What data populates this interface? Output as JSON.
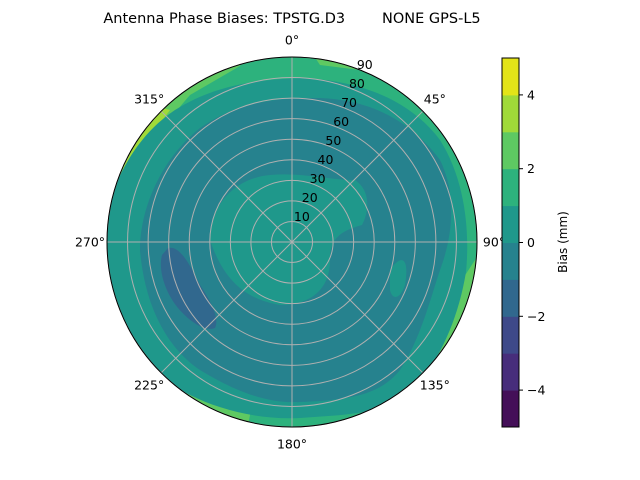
{
  "chart_data": {
    "type": "contour",
    "projection": "polar",
    "title": "Antenna Phase Biases: TPSTG.D3        NONE GPS-L5",
    "theta_direction": "clockwise",
    "theta_zero": "top",
    "theta_ticks": [
      "0°",
      "45°",
      "90°",
      "135°",
      "180°",
      "225°",
      "270°",
      "315°"
    ],
    "theta_tick_values": [
      0,
      45,
      90,
      135,
      180,
      225,
      270,
      315
    ],
    "r_ticks": [
      "10",
      "20",
      "30",
      "40",
      "50",
      "60",
      "70",
      "80",
      "90"
    ],
    "r_tick_values": [
      10,
      20,
      30,
      40,
      50,
      60,
      70,
      80,
      90
    ],
    "rlim": [
      0,
      90
    ],
    "grid": true,
    "colorbar": {
      "label": "Bias (mm)",
      "levels": [
        -5,
        -4,
        -3,
        -2,
        -1,
        0,
        1,
        2,
        3,
        4,
        5
      ],
      "ticks": [
        -4,
        -2,
        0,
        2,
        4
      ],
      "tick_labels": [
        "−4",
        "−2",
        "0",
        "2",
        "4"
      ],
      "colors": [
        "#440f58",
        "#472d7b",
        "#3e4989",
        "#31688e",
        "#26828e",
        "#1f988b",
        "#2db27d",
        "#5ec962",
        "#a0da39",
        "#e3e418"
      ],
      "colormap": "viridis"
    },
    "regions": [
      {
        "level_range": [
          0,
          1
        ],
        "location": "center and mid ring, southeast and north"
      },
      {
        "level_range": [
          -1,
          0
        ],
        "location": "broad ring between ~20 and ~70 zenith"
      },
      {
        "level_range": [
          -2,
          -1
        ],
        "location": "west-southwest near 60-75 zenith"
      },
      {
        "level_range": [
          1,
          2
        ],
        "location": "outer edge"
      },
      {
        "level_range": [
          2,
          3
        ],
        "location": "edge near NW, NE, SE, SW"
      },
      {
        "level_range": [
          3,
          4
        ],
        "location": "edge near NNE and NW"
      },
      {
        "level_range": [
          4,
          5
        ],
        "location": "edge near NW (~300-320°)"
      }
    ]
  }
}
